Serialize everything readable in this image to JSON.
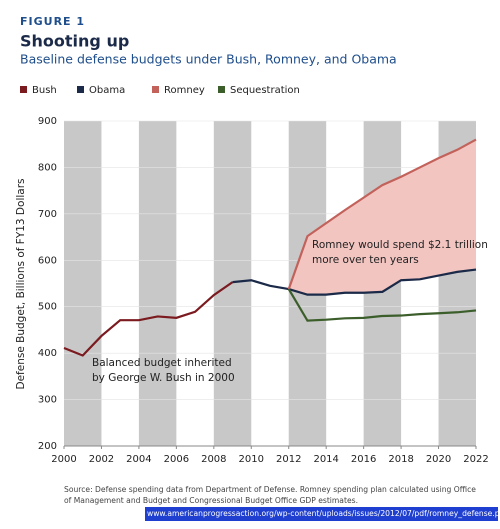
{
  "chart_data": {
    "type": "line",
    "figure_label": "FIGURE 1",
    "title": "Shooting up",
    "subtitle": "Baseline defense budgets under Bush, Romney, and Obama",
    "y_label": "Defense Budget, Billions of FY13 Dollars",
    "x": [
      2000,
      2001,
      2002,
      2003,
      2004,
      2005,
      2006,
      2007,
      2008,
      2009,
      2010,
      2011,
      2012,
      2013,
      2014,
      2015,
      2016,
      2017,
      2018,
      2019,
      2020,
      2021,
      2022
    ],
    "series": [
      {
        "name": "Bush",
        "color": "#7b1a1f",
        "values": [
          411,
          395,
          437,
          471,
          471,
          479,
          476,
          489,
          525,
          553,
          null,
          null,
          null,
          null,
          null,
          null,
          null,
          null,
          null,
          null,
          null,
          null,
          null
        ]
      },
      {
        "name": "Obama",
        "color": "#1b2a48",
        "values": [
          null,
          null,
          null,
          null,
          null,
          null,
          null,
          null,
          null,
          553,
          557,
          545,
          538,
          526,
          526,
          530,
          530,
          532,
          557,
          559,
          567,
          575,
          580
        ]
      },
      {
        "name": "Romney",
        "color": "#c2625b",
        "values": [
          null,
          null,
          null,
          null,
          null,
          null,
          null,
          null,
          null,
          null,
          null,
          null,
          538,
          652,
          680,
          708,
          735,
          762,
          780,
          800,
          820,
          838,
          860
        ]
      },
      {
        "name": "Sequestration",
        "color": "#3b5e2b",
        "values": [
          null,
          null,
          null,
          null,
          null,
          null,
          null,
          null,
          null,
          null,
          null,
          null,
          538,
          470,
          472,
          475,
          476,
          480,
          481,
          484,
          486,
          488,
          492
        ]
      }
    ],
    "area_color": "#f2c5c1",
    "xlim": [
      2000,
      2022
    ],
    "xticks": [
      2000,
      2002,
      2004,
      2006,
      2008,
      2010,
      2012,
      2014,
      2016,
      2018,
      2020,
      2022
    ],
    "ylim": [
      200,
      900
    ],
    "yticks": [
      200,
      300,
      400,
      500,
      600,
      700,
      800,
      900
    ],
    "stripe_color": "#c8c8c8",
    "annotations": [
      {
        "lines": [
          "Romney would spend $2.1 trillion",
          "more over ten years"
        ]
      },
      {
        "lines": [
          "Balanced budget inherited",
          "by George W. Bush in 2000"
        ]
      }
    ],
    "source": [
      "Source: Defense spending data from Department of Defense. Romney spending plan calculated using Office",
      "of Management and Budget and Congressional Budget Office GDP estimates."
    ],
    "url": "www.americanprogressaction.org/wp-content/uploads/issues/2012/07/pdf/romney_defense.pdf"
  }
}
